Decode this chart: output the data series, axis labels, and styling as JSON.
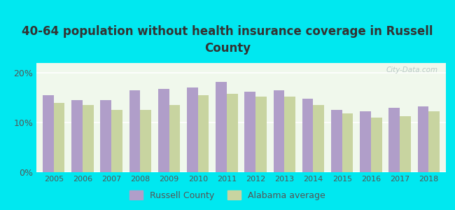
{
  "title": "40-64 population without health insurance coverage in Russell\nCounty",
  "years": [
    2005,
    2006,
    2007,
    2008,
    2009,
    2010,
    2011,
    2012,
    2013,
    2014,
    2015,
    2016,
    2017,
    2018
  ],
  "russell_county": [
    15.5,
    14.5,
    14.5,
    16.5,
    16.8,
    17.0,
    18.2,
    16.2,
    16.5,
    14.8,
    12.5,
    12.3,
    13.0,
    13.2
  ],
  "alabama_avg": [
    14.0,
    13.5,
    12.5,
    12.5,
    13.5,
    15.5,
    15.8,
    15.3,
    15.2,
    13.5,
    11.8,
    11.0,
    11.3,
    12.2
  ],
  "russell_color": "#b09ec9",
  "alabama_color": "#c8d4a0",
  "background_color": "#00e8f0",
  "plot_bg_color": "#f0f8ec",
  "ylim": [
    0,
    22
  ],
  "yticks": [
    0,
    10,
    20
  ],
  "ytick_labels": [
    "0%",
    "10%",
    "20%"
  ],
  "title_color": "#333333",
  "title_fontsize": 12,
  "legend_labels": [
    "Russell County",
    "Alabama average"
  ],
  "watermark": "City-Data.com"
}
